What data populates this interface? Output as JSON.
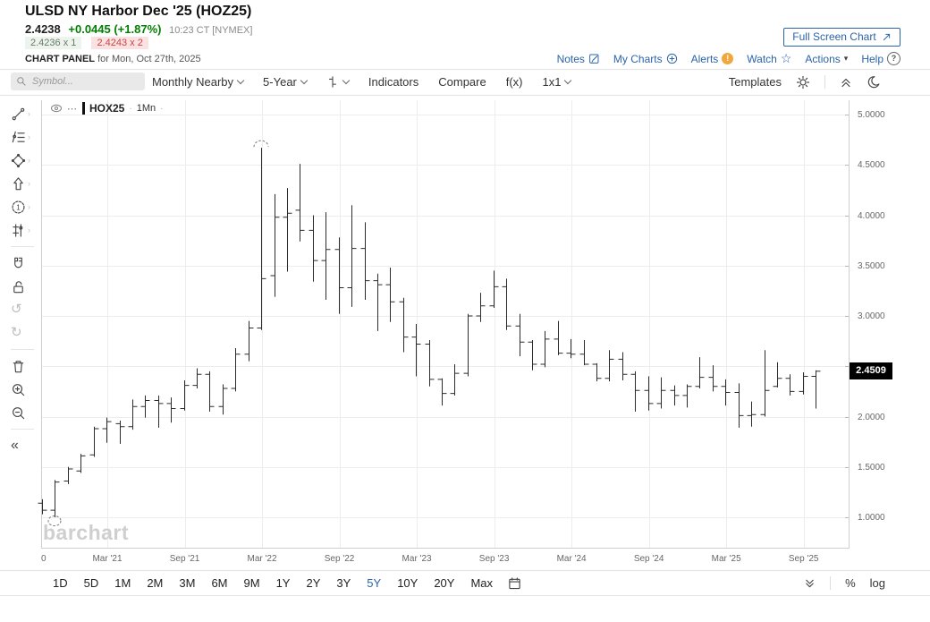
{
  "header": {
    "title": "ULSD NY Harbor Dec '25 (HOZ25)",
    "last_price": "2.4238",
    "change": "+0.0445 (+1.87%)",
    "quote_time": "10:23 CT [NYMEX]",
    "bid": "2.4236 x 1",
    "ask": "2.4243 x 2",
    "panel_label": "CHART PANEL",
    "panel_date": "for Mon, Oct 27th, 2025",
    "fullscreen_button": "Full Screen Chart",
    "links": [
      "Notes",
      "My Charts",
      "Alerts",
      "Watch",
      "Actions",
      "Help"
    ]
  },
  "toolbar": {
    "symbol_placeholder": "Symbol...",
    "aggregation": "Monthly Nearby",
    "range": "5-Year",
    "items": [
      "Indicators",
      "Compare",
      "f(x)",
      "1x1"
    ],
    "templates_label": "Templates"
  },
  "sidebar": {
    "tools": [
      "trendline-icon",
      "annotation-tools-icon",
      "shape-tool-icon",
      "arrow-tool-icon",
      "number-annotation-icon",
      "measure-tool-icon",
      "magnet-icon",
      "unlock-icon",
      "undo-icon",
      "redo-icon",
      "trash-icon",
      "zoom-in-icon",
      "zoom-out-icon",
      "collapse-icon"
    ]
  },
  "chart": {
    "legend_symbol": "HOX25",
    "legend_interval": "1Mn",
    "watermark": "barchart",
    "price_label": "2.4509",
    "y_ticks": [
      "5.0000",
      "4.5000",
      "4.0000",
      "3.5000",
      "3.0000",
      "2.5000",
      "2.0000",
      "1.5000",
      "1.0000"
    ],
    "x_ticks": [
      "0",
      "Mar '21",
      "Sep '21",
      "Mar '22",
      "Sep '22",
      "Mar '23",
      "Sep '23",
      "Mar '24",
      "Sep '24",
      "Mar '25",
      "Sep '25"
    ]
  },
  "bottom": {
    "ranges": [
      "1D",
      "5D",
      "1M",
      "2M",
      "3M",
      "6M",
      "9M",
      "1Y",
      "2Y",
      "3Y",
      "5Y",
      "10Y",
      "20Y",
      "Max"
    ],
    "active_range": "5Y",
    "percent_label": "%",
    "log_label": "log"
  },
  "colors": {
    "accent_blue": "#2b64a9",
    "up_green": "#007f00",
    "ask_red": "#cc4444",
    "bid_bg": "#edf3ed",
    "ask_bg": "#fbe2e2",
    "bar_color": "#2b2b2b",
    "grid_color": "#ededed",
    "price_tag_bg": "#000000"
  },
  "chart_data": {
    "type": "ohlc-bar",
    "title": "ULSD NY Harbor Dec '25 (HOZ25) — Monthly Nearby, 5-Year",
    "interval": "1 month",
    "ylim": [
      1.0,
      5.0
    ],
    "y_step": 0.5,
    "grid": true,
    "last_price_label": 2.4509,
    "columns": [
      "month",
      "open",
      "high",
      "low",
      "close"
    ],
    "rows": [
      [
        "Oct '20",
        1.14,
        1.18,
        1.03,
        1.07
      ],
      [
        "Nov '20",
        1.07,
        1.37,
        1.0,
        1.35
      ],
      [
        "Dec '20",
        1.36,
        1.5,
        1.33,
        1.48
      ],
      [
        "Jan '21",
        1.46,
        1.63,
        1.44,
        1.61
      ],
      [
        "Feb '21",
        1.62,
        1.9,
        1.6,
        1.88
      ],
      [
        "Mar '21",
        1.88,
        1.99,
        1.74,
        1.95
      ],
      [
        "Apr '21",
        1.93,
        1.96,
        1.73,
        1.9
      ],
      [
        "May '21",
        1.9,
        2.17,
        1.87,
        2.1
      ],
      [
        "Jun '21",
        2.1,
        2.21,
        1.99,
        2.16
      ],
      [
        "Jul '21",
        2.16,
        2.21,
        1.89,
        2.13
      ],
      [
        "Aug '21",
        2.13,
        2.19,
        1.94,
        2.08
      ],
      [
        "Sep '21",
        2.08,
        2.36,
        2.06,
        2.31
      ],
      [
        "Oct '21",
        2.31,
        2.48,
        2.28,
        2.42
      ],
      [
        "Nov '21",
        2.42,
        2.45,
        2.05,
        2.1
      ],
      [
        "Dec '21",
        2.1,
        2.32,
        2.02,
        2.28
      ],
      [
        "Jan '22",
        2.28,
        2.68,
        2.25,
        2.62
      ],
      [
        "Feb '22",
        2.62,
        2.95,
        2.55,
        2.88
      ],
      [
        "Mar '22",
        2.88,
        4.67,
        2.86,
        3.37
      ],
      [
        "Apr '22",
        3.4,
        4.21,
        3.19,
        3.98
      ],
      [
        "May '22",
        3.98,
        4.27,
        3.44,
        4.02
      ],
      [
        "Jun '22",
        4.05,
        4.51,
        3.74,
        3.85
      ],
      [
        "Jul '22",
        3.85,
        4.0,
        3.34,
        3.55
      ],
      [
        "Aug '22",
        3.55,
        4.03,
        3.16,
        3.66
      ],
      [
        "Sep '22",
        3.66,
        3.78,
        3.02,
        3.28
      ],
      [
        "Oct '22",
        3.28,
        4.1,
        3.09,
        3.67
      ],
      [
        "Nov '22",
        3.67,
        3.93,
        3.16,
        3.35
      ],
      [
        "Dec '22",
        3.35,
        3.42,
        2.85,
        3.31
      ],
      [
        "Jan '23",
        3.31,
        3.48,
        2.94,
        3.14
      ],
      [
        "Feb '23",
        3.14,
        3.18,
        2.64,
        2.79
      ],
      [
        "Mar '23",
        2.79,
        2.92,
        2.4,
        2.72
      ],
      [
        "Apr '23",
        2.72,
        2.76,
        2.3,
        2.37
      ],
      [
        "May '23",
        2.37,
        2.38,
        2.11,
        2.23
      ],
      [
        "Jun '23",
        2.23,
        2.52,
        2.21,
        2.43
      ],
      [
        "Jul '23",
        2.43,
        3.02,
        2.4,
        3.0
      ],
      [
        "Aug '23",
        3.0,
        3.23,
        2.94,
        3.1
      ],
      [
        "Sep '23",
        3.1,
        3.45,
        3.08,
        3.29
      ],
      [
        "Oct '23",
        3.29,
        3.37,
        2.86,
        2.9
      ],
      [
        "Nov '23",
        2.9,
        3.02,
        2.6,
        2.74
      ],
      [
        "Dec '23",
        2.74,
        2.76,
        2.46,
        2.52
      ],
      [
        "Jan '24",
        2.52,
        2.85,
        2.49,
        2.77
      ],
      [
        "Feb '24",
        2.77,
        2.95,
        2.61,
        2.63
      ],
      [
        "Mar '24",
        2.63,
        2.77,
        2.58,
        2.62
      ],
      [
        "Apr '24",
        2.62,
        2.76,
        2.51,
        2.52
      ],
      [
        "May '24",
        2.52,
        2.53,
        2.35,
        2.38
      ],
      [
        "Jun '24",
        2.38,
        2.66,
        2.35,
        2.57
      ],
      [
        "Jul '24",
        2.57,
        2.64,
        2.36,
        2.42
      ],
      [
        "Aug '24",
        2.42,
        2.45,
        2.05,
        2.26
      ],
      [
        "Sep '24",
        2.26,
        2.4,
        2.06,
        2.13
      ],
      [
        "Oct '24",
        2.13,
        2.39,
        2.08,
        2.26
      ],
      [
        "Nov '24",
        2.26,
        2.31,
        2.11,
        2.21
      ],
      [
        "Dec '24",
        2.21,
        2.32,
        2.09,
        2.3
      ],
      [
        "Jan '25",
        2.3,
        2.59,
        2.28,
        2.39
      ],
      [
        "Feb '25",
        2.39,
        2.51,
        2.25,
        2.3
      ],
      [
        "Mar '25",
        2.3,
        2.37,
        2.11,
        2.24
      ],
      [
        "Apr '25",
        2.24,
        2.33,
        1.89,
        2.01
      ],
      [
        "May '25",
        2.01,
        2.15,
        1.9,
        2.02
      ],
      [
        "Jun '25",
        2.02,
        2.66,
        2.0,
        2.26
      ],
      [
        "Jul '25",
        2.3,
        2.54,
        2.29,
        2.38
      ],
      [
        "Aug '25",
        2.38,
        2.42,
        2.21,
        2.25
      ],
      [
        "Sep '25",
        2.25,
        2.44,
        2.22,
        2.4
      ],
      [
        "Oct '25",
        2.4,
        2.46,
        2.08,
        2.4509
      ]
    ]
  }
}
